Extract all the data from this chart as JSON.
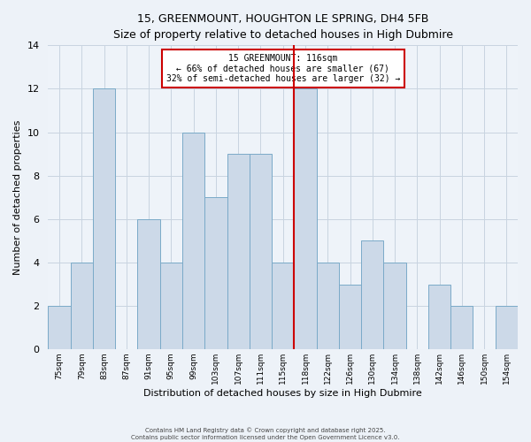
{
  "title": "15, GREENMOUNT, HOUGHTON LE SPRING, DH4 5FB",
  "subtitle": "Size of property relative to detached houses in High Dubmire",
  "xlabel": "Distribution of detached houses by size in High Dubmire",
  "ylabel": "Number of detached properties",
  "bar_labels": [
    "75sqm",
    "79sqm",
    "83sqm",
    "87sqm",
    "91sqm",
    "95sqm",
    "99sqm",
    "103sqm",
    "107sqm",
    "111sqm",
    "115sqm",
    "118sqm",
    "122sqm",
    "126sqm",
    "130sqm",
    "134sqm",
    "138sqm",
    "142sqm",
    "146sqm",
    "150sqm",
    "154sqm"
  ],
  "bar_values": [
    2,
    4,
    12,
    0,
    6,
    4,
    10,
    7,
    9,
    9,
    4,
    12,
    4,
    3,
    5,
    4,
    0,
    3,
    2,
    0,
    2
  ],
  "bar_color": "#ccd9e8",
  "bar_edge_color": "#7aaac8",
  "reference_line_x": 10.5,
  "reference_line_label": "15 GREENMOUNT: 116sqm",
  "annotation_line1": "← 66% of detached houses are smaller (67)",
  "annotation_line2": "32% of semi-detached houses are larger (32) →",
  "annotation_box_color": "#ffffff",
  "annotation_box_edge_color": "#cc0000",
  "reference_line_color": "#cc0000",
  "ylim": [
    0,
    14
  ],
  "footer1": "Contains HM Land Registry data © Crown copyright and database right 2025.",
  "footer2": "Contains public sector information licensed under the Open Government Licence v3.0.",
  "background_color": "#edf2f8",
  "plot_background_color": "#eef3f9",
  "grid_color": "#c8d4e0"
}
